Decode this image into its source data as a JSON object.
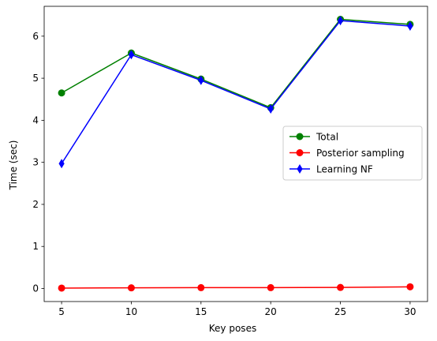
{
  "chart_data": {
    "type": "line",
    "title": "",
    "xlabel": "Key poses",
    "ylabel": "Time (sec)",
    "x": [
      5,
      10,
      15,
      20,
      25,
      30
    ],
    "xticks": [
      "5",
      "10",
      "15",
      "20",
      "25",
      "30"
    ],
    "yticks": [
      "0",
      "1",
      "2",
      "3",
      "4",
      "5",
      "6"
    ],
    "xlim": [
      3.75,
      31.25
    ],
    "ylim": [
      -0.31,
      6.71
    ],
    "grid": false,
    "legend_position": "center-right",
    "series": [
      {
        "name": "Total",
        "values": [
          4.65,
          5.6,
          4.98,
          4.3,
          6.4,
          6.28
        ],
        "color": "#008000",
        "marker": "circle"
      },
      {
        "name": "Posterior sampling",
        "values": [
          0.01,
          0.015,
          0.02,
          0.02,
          0.025,
          0.04
        ],
        "color": "#ff0000",
        "marker": "circle"
      },
      {
        "name": "Learning NF",
        "values": [
          2.97,
          5.56,
          4.95,
          4.27,
          6.37,
          6.24
        ],
        "color": "#0000ff",
        "marker": "thin-diamond"
      }
    ]
  }
}
